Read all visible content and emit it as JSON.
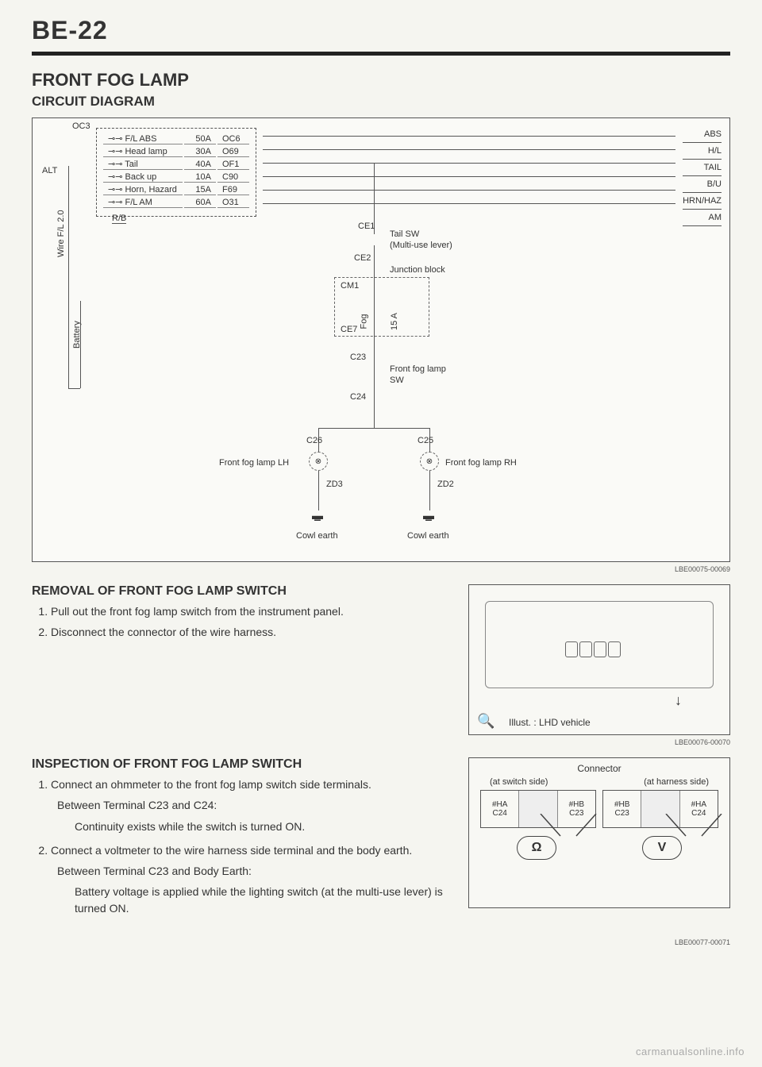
{
  "page_number": "BE-22",
  "main_title": "FRONT FOG LAMP",
  "subtitle": "CIRCUIT DIAGRAM",
  "diagram": {
    "oc3": "OC3",
    "alt": "ALT",
    "rb": "R/B",
    "wire_label": "Wire F/L 2.0",
    "battery_label": "Battery",
    "fuses": [
      {
        "name": "F/L ABS",
        "amp": "50A",
        "code": "OC6"
      },
      {
        "name": "Head lamp",
        "amp": "30A",
        "code": "O69"
      },
      {
        "name": "Tail",
        "amp": "40A",
        "code": "OF1"
      },
      {
        "name": "Back up",
        "amp": "10A",
        "code": "C90"
      },
      {
        "name": "Horn, Hazard",
        "amp": "15A",
        "code": "F69"
      },
      {
        "name": "F/L AM",
        "amp": "60A",
        "code": "O31"
      }
    ],
    "right_bus": [
      "ABS",
      "H/L",
      "TAIL",
      "B/U",
      "HRN/HAZ",
      "AM"
    ],
    "labels": {
      "ce1": "CE1",
      "tail_sw": "Tail SW",
      "multi_use": "(Multi-use lever)",
      "ce2": "CE2",
      "junction": "Junction block",
      "cm1": "CM1",
      "fog": "Fog",
      "fifteen_a": "15 A",
      "ce7": "CE7",
      "c23": "C23",
      "front_fog_sw": "Front fog lamp",
      "sw": "SW",
      "c24": "C24",
      "c26": "C26",
      "c25": "C25",
      "lamp_lh": "Front fog lamp LH",
      "lamp_rh": "Front fog lamp RH",
      "zd3": "ZD3",
      "zd2": "ZD2",
      "cowl_earth_l": "Cowl earth",
      "cowl_earth_r": "Cowl earth"
    },
    "fig_num": "LBE00075-00069"
  },
  "removal": {
    "heading": "REMOVAL OF FRONT FOG LAMP SWITCH",
    "steps": [
      "Pull out the front fog lamp switch from the instrument panel.",
      "Disconnect the connector of the wire harness."
    ],
    "illust_caption": "Illust. : LHD vehicle",
    "fig_num": "LBE00076-00070"
  },
  "inspection": {
    "heading": "INSPECTION OF FRONT FOG LAMP SWITCH",
    "step1": "Connect an ohmmeter to the front fog lamp switch side terminals.",
    "step1_sub1": "Between Terminal C23 and C24:",
    "step1_sub2": "Continuity exists while the switch is turned ON.",
    "step2": "Connect a voltmeter to the wire harness side terminal and the body earth.",
    "step2_sub1": "Between Terminal C23 and Body Earth:",
    "step2_sub2": "Battery voltage is applied while the lighting switch (at the multi-use lever) is turned ON.",
    "connector": {
      "title": "Connector",
      "left_side": "(at switch side)",
      "right_side": "(at harness side)",
      "switch_pins": [
        "#HA",
        "#HB",
        "C24",
        "C23"
      ],
      "harness_pins": [
        "#HB",
        "#HA",
        "C23",
        "C24"
      ],
      "ohm": "Ω",
      "volt": "V"
    },
    "fig_num": "LBE00077-00071"
  },
  "watermark": "carmanualsonline.info",
  "colors": {
    "background": "#f5f5f0",
    "text": "#333333",
    "border": "#555555",
    "rule": "#222222"
  }
}
